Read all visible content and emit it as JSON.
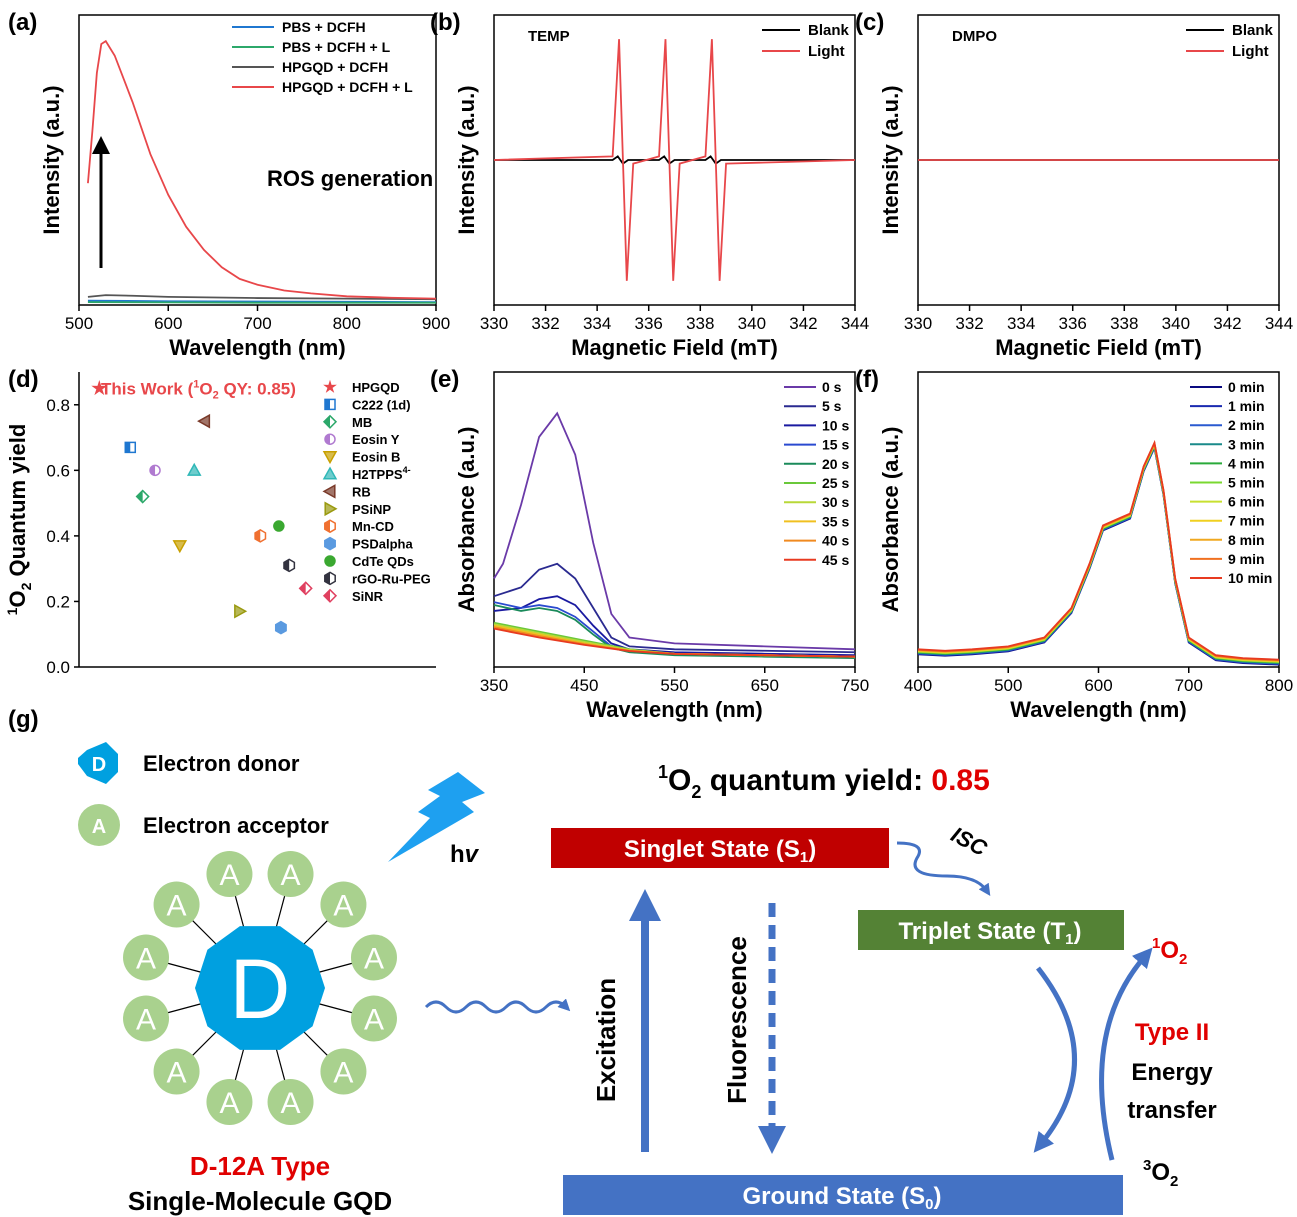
{
  "panel_labels": [
    "(a)",
    "(b)",
    "(c)",
    "(d)",
    "(e)",
    "(f)",
    "(g)"
  ],
  "colors": {
    "blue": "#1f77d0",
    "green": "#2ca86a",
    "dark": "#555555",
    "red": "#e8474a",
    "diagram_blue": "#4472c4",
    "diagram_red": "#c00000",
    "diagram_green": "#548235",
    "acceptor": "#a9d18e",
    "donor": "#00a0e0"
  },
  "chart_data": [
    {
      "id": "a",
      "type": "line",
      "xlabel": "Wavelength (nm)",
      "ylabel": "Intensity (a.u.)",
      "xlim": [
        500,
        900
      ],
      "ylim": [
        0,
        100
      ],
      "xticks": [
        500,
        600,
        700,
        800,
        900
      ],
      "annotation": "ROS generation",
      "series": [
        {
          "name": "PBS + DCFH",
          "color": "#1f77d0",
          "x": [
            510,
            600,
            700,
            800,
            900
          ],
          "y": [
            1.5,
            1.3,
            1.2,
            1.1,
            1.0
          ]
        },
        {
          "name": "PBS + DCFH + L",
          "color": "#2ca86a",
          "x": [
            510,
            600,
            700,
            800,
            900
          ],
          "y": [
            1.0,
            0.9,
            0.8,
            0.8,
            0.8
          ]
        },
        {
          "name": "HPGQD + DCFH",
          "color": "#555555",
          "x": [
            510,
            530,
            560,
            600,
            700,
            800,
            900
          ],
          "y": [
            2.8,
            3.4,
            3.2,
            2.8,
            2.4,
            2.2,
            2.0
          ]
        },
        {
          "name": "HPGQD + DCFH + L",
          "color": "#e8474a",
          "x": [
            510,
            515,
            520,
            525,
            530,
            540,
            560,
            580,
            600,
            620,
            640,
            660,
            680,
            700,
            730,
            760,
            800,
            850,
            900
          ],
          "y": [
            42,
            60,
            80,
            90,
            91,
            86,
            70,
            52,
            38,
            27,
            19,
            13,
            9,
            7,
            5,
            4,
            3,
            2.5,
            2.2
          ]
        }
      ]
    },
    {
      "id": "b",
      "type": "line",
      "xlabel": "Magnetic Field (mT)",
      "ylabel": "Intensity (a.u.)",
      "xlim": [
        330,
        344
      ],
      "ylim": [
        -1.2,
        1.2
      ],
      "xticks": [
        330,
        332,
        334,
        336,
        338,
        340,
        342,
        344
      ],
      "tag": "TEMP",
      "series": [
        {
          "name": "Blank",
          "color": "#000000",
          "x": [
            330,
            334.6,
            334.8,
            335.0,
            335.2,
            336.4,
            336.6,
            336.8,
            337.0,
            338.2,
            338.4,
            338.6,
            338.8,
            344
          ],
          "y": [
            0,
            0,
            0.03,
            -0.03,
            0,
            0,
            0.03,
            -0.03,
            0,
            0,
            0.03,
            -0.03,
            0,
            0
          ]
        },
        {
          "name": "Light",
          "color": "#e8474a",
          "x": [
            330,
            334.6,
            334.85,
            335.0,
            335.15,
            335.4,
            336.4,
            336.65,
            336.8,
            336.95,
            337.2,
            338.2,
            338.45,
            338.6,
            338.75,
            339.0,
            344
          ],
          "y": [
            0,
            0.03,
            1.0,
            0,
            -1.0,
            -0.03,
            0.03,
            1.0,
            0,
            -1.0,
            -0.03,
            0.03,
            1.0,
            0,
            -1.0,
            -0.03,
            0
          ]
        }
      ]
    },
    {
      "id": "c",
      "type": "line",
      "xlabel": "Magnetic Field (mT)",
      "ylabel": "Intensity (a.u.)",
      "xlim": [
        330,
        344
      ],
      "ylim": [
        -1.2,
        1.2
      ],
      "xticks": [
        330,
        332,
        334,
        336,
        338,
        340,
        342,
        344
      ],
      "tag": "DMPO",
      "series": [
        {
          "name": "Blank",
          "color": "#000000",
          "x": [
            330,
            344
          ],
          "y": [
            0,
            0
          ]
        },
        {
          "name": "Light",
          "color": "#e8474a",
          "x": [
            330,
            344
          ],
          "y": [
            0,
            0
          ]
        }
      ]
    },
    {
      "id": "d",
      "type": "scatter",
      "ylabel": "1O2 Quantum yield",
      "ylim": [
        0,
        0.9
      ],
      "yticks": [
        0.0,
        0.2,
        0.4,
        0.6,
        0.8
      ],
      "annotation": "This Work (1O2 QY: 0.85)",
      "points": [
        {
          "name": "HPGQD",
          "y": 0.85,
          "color": "#e8474a",
          "marker": "star"
        },
        {
          "name": "C222 (1d)",
          "y": 0.67,
          "color": "#1f77d0",
          "marker": "half-square"
        },
        {
          "name": "MB",
          "y": 0.52,
          "color": "#2ca86a",
          "marker": "half-diamond"
        },
        {
          "name": "Eosin Y",
          "y": 0.6,
          "color": "#b07ad0",
          "marker": "half-circle"
        },
        {
          "name": "Eosin B",
          "y": 0.37,
          "color": "#c8a000",
          "marker": "tri-down"
        },
        {
          "name": "H2TPPS4-",
          "y": 0.6,
          "color": "#30b8b8",
          "marker": "tri-up"
        },
        {
          "name": "RB",
          "y": 0.75,
          "color": "#7a3a2a",
          "marker": "tri-left"
        },
        {
          "name": "PSiNP",
          "y": 0.17,
          "color": "#9a9a10",
          "marker": "tri-right"
        },
        {
          "name": "Mn-CD",
          "y": 0.4,
          "color": "#f07030",
          "marker": "half-hex"
        },
        {
          "name": "PSDalpha",
          "y": 0.12,
          "color": "#5a9ae0",
          "marker": "hex"
        },
        {
          "name": "CdTe QDs",
          "y": 0.43,
          "color": "#3aa830",
          "marker": "circle"
        },
        {
          "name": "rGO-Ru-PEG",
          "y": 0.31,
          "color": "#333340",
          "marker": "half-hex"
        },
        {
          "name": "SiNR",
          "y": 0.24,
          "color": "#e04060",
          "marker": "half-diamond"
        }
      ],
      "x_order": [
        0.5,
        2,
        2.6,
        3.2,
        4.4,
        5.1,
        5.6,
        7.3,
        8.3,
        9.3,
        9.2,
        9.7,
        10.5
      ]
    },
    {
      "id": "e",
      "type": "line",
      "xlabel": "Wavelength (nm)",
      "ylabel": "Absorbance (a.u.)",
      "xlim": [
        350,
        750
      ],
      "ylim": [
        0,
        1
      ],
      "xticks": [
        350,
        450,
        550,
        650,
        750
      ],
      "series": [
        {
          "name": "0 s",
          "color": "#6a3aa8",
          "x": [
            350,
            360,
            380,
            400,
            420,
            440,
            460,
            480,
            500,
            550,
            650,
            750
          ],
          "y": [
            0.3,
            0.35,
            0.55,
            0.78,
            0.86,
            0.72,
            0.42,
            0.18,
            0.1,
            0.08,
            0.07,
            0.06
          ]
        },
        {
          "name": "5 s",
          "color": "#2a2a90",
          "x": [
            350,
            380,
            400,
            420,
            440,
            460,
            480,
            500,
            550,
            650,
            750
          ],
          "y": [
            0.24,
            0.27,
            0.33,
            0.35,
            0.3,
            0.2,
            0.1,
            0.07,
            0.06,
            0.055,
            0.05
          ]
        },
        {
          "name": "10 s",
          "color": "#1a1aa0",
          "x": [
            350,
            380,
            400,
            420,
            440,
            460,
            480,
            500,
            550,
            650,
            750
          ],
          "y": [
            0.19,
            0.2,
            0.23,
            0.24,
            0.21,
            0.14,
            0.08,
            0.06,
            0.05,
            0.045,
            0.04
          ]
        },
        {
          "name": "15 s",
          "color": "#2a4ad0",
          "x": [
            350,
            380,
            400,
            420,
            440,
            460,
            480,
            500,
            550,
            650,
            750
          ],
          "y": [
            0.22,
            0.2,
            0.21,
            0.2,
            0.17,
            0.12,
            0.07,
            0.055,
            0.045,
            0.04,
            0.035
          ]
        },
        {
          "name": "20 s",
          "color": "#1a8a5a",
          "x": [
            350,
            380,
            400,
            420,
            440,
            460,
            480,
            500,
            550,
            650,
            750
          ],
          "y": [
            0.21,
            0.19,
            0.2,
            0.19,
            0.16,
            0.11,
            0.065,
            0.05,
            0.04,
            0.035,
            0.03
          ]
        },
        {
          "name": "25 s",
          "color": "#6ac83a",
          "x": [
            350,
            400,
            450,
            500,
            550,
            650,
            750
          ],
          "y": [
            0.15,
            0.12,
            0.09,
            0.06,
            0.045,
            0.04,
            0.035
          ]
        },
        {
          "name": "30 s",
          "color": "#b8d838",
          "x": [
            350,
            400,
            450,
            500,
            550,
            650,
            750
          ],
          "y": [
            0.145,
            0.115,
            0.085,
            0.058,
            0.045,
            0.04,
            0.035
          ]
        },
        {
          "name": "35 s",
          "color": "#f0c020",
          "x": [
            350,
            400,
            450,
            500,
            550,
            650,
            750
          ],
          "y": [
            0.14,
            0.11,
            0.08,
            0.056,
            0.045,
            0.04,
            0.035
          ]
        },
        {
          "name": "40 s",
          "color": "#f08a20",
          "x": [
            350,
            400,
            450,
            500,
            550,
            650,
            750
          ],
          "y": [
            0.135,
            0.105,
            0.078,
            0.055,
            0.045,
            0.04,
            0.035
          ]
        },
        {
          "name": "45 s",
          "color": "#e83a20",
          "x": [
            350,
            400,
            450,
            500,
            550,
            650,
            750
          ],
          "y": [
            0.13,
            0.1,
            0.075,
            0.054,
            0.044,
            0.04,
            0.035
          ]
        }
      ]
    },
    {
      "id": "f",
      "type": "line",
      "xlabel": "Wavelength (nm)",
      "ylabel": "Absorbance (a.u.)",
      "xlim": [
        400,
        800
      ],
      "ylim": [
        0,
        1
      ],
      "xticks": [
        400,
        500,
        600,
        700,
        800
      ],
      "series": [
        {
          "name": "0 min",
          "color": "#0a0a80"
        },
        {
          "name": "1 min",
          "color": "#1a2ab0"
        },
        {
          "name": "2 min",
          "color": "#2a5ad0"
        },
        {
          "name": "3 min",
          "color": "#1a8a8a"
        },
        {
          "name": "4 min",
          "color": "#2aaa3a"
        },
        {
          "name": "5 min",
          "color": "#7ad830"
        },
        {
          "name": "6 min",
          "color": "#c8e030"
        },
        {
          "name": "7 min",
          "color": "#f0d020"
        },
        {
          "name": "8 min",
          "color": "#f0a820"
        },
        {
          "name": "9 min",
          "color": "#f07020"
        },
        {
          "name": "10 min",
          "color": "#e83a20"
        }
      ],
      "shared_x": [
        400,
        430,
        460,
        500,
        540,
        570,
        590,
        605,
        620,
        635,
        650,
        662,
        672,
        685,
        700,
        730,
        760,
        800
      ],
      "shared_y": [
        0.06,
        0.055,
        0.06,
        0.07,
        0.1,
        0.2,
        0.35,
        0.48,
        0.5,
        0.52,
        0.68,
        0.76,
        0.6,
        0.3,
        0.1,
        0.04,
        0.03,
        0.025
      ]
    }
  ],
  "diagram": {
    "legend_donor_letter": "D",
    "legend_donor": "Electron donor",
    "legend_acceptor_letter": "A",
    "legend_acceptor": "Electron acceptor",
    "hv": "hv",
    "core_letter": "D",
    "acceptor_letter": "A",
    "type_label": "D-12A Type",
    "molecule_label": "Single-Molecule GQD",
    "qy_title": "quantum yield:",
    "qy_value": "0.85",
    "singlet": "Singlet State (S1)",
    "triplet": "Triplet State (T1)",
    "ground": "Ground State (S0)",
    "isc": "ISC",
    "excitation": "Excitation",
    "fluorescence": "Fluorescence",
    "type2": "Type II",
    "energy": "Energy",
    "transfer": "transfer",
    "singlet_o2": "1O2",
    "triplet_o2": "3O2"
  }
}
